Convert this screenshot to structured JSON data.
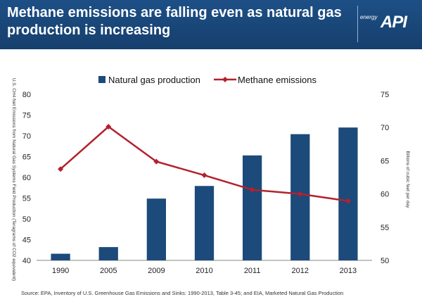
{
  "header": {
    "title": "Methane emissions are falling even as natural gas production is increasing",
    "logo_small": "energy",
    "logo_main": "API"
  },
  "chart_data": {
    "type": "bar",
    "categories": [
      "1990",
      "2005",
      "2009",
      "2010",
      "2011",
      "2012",
      "2013"
    ],
    "series": [
      {
        "name": "Natural gas production",
        "type": "bar",
        "axis": "right",
        "values": [
          51,
          52,
          59.3,
          61.2,
          65.8,
          69,
          70
        ]
      },
      {
        "name": "Methane emissions",
        "type": "line",
        "axis": "left",
        "values": [
          62,
          72.2,
          63.8,
          60.5,
          57,
          56,
          54.3
        ]
      }
    ],
    "ylabel_left": "U.S. CH4 Net Emissions from Natural Gas Systems Field Production (Teragrams of CO2 equivalent)",
    "ylabel_right": "Billions of cubic feet per day",
    "ylim_left": [
      40,
      80
    ],
    "ylim_right": [
      50,
      75
    ],
    "yticks_left": [
      "40",
      "45",
      "50",
      "55",
      "60",
      "65",
      "70",
      "75",
      "80"
    ],
    "yticks_right": [
      "50",
      "55",
      "60",
      "65",
      "70",
      "75"
    ],
    "legend": "top",
    "colors": {
      "bar": "#1c4a7a",
      "line": "#b3212e"
    },
    "grid": false,
    "source": "Source: EPA, Inventory of U.S. Greenhouse Gas Emissions and Sinks: 1990-2013, Table 3-45; and EIA, Marketed Natural Gas Production"
  }
}
